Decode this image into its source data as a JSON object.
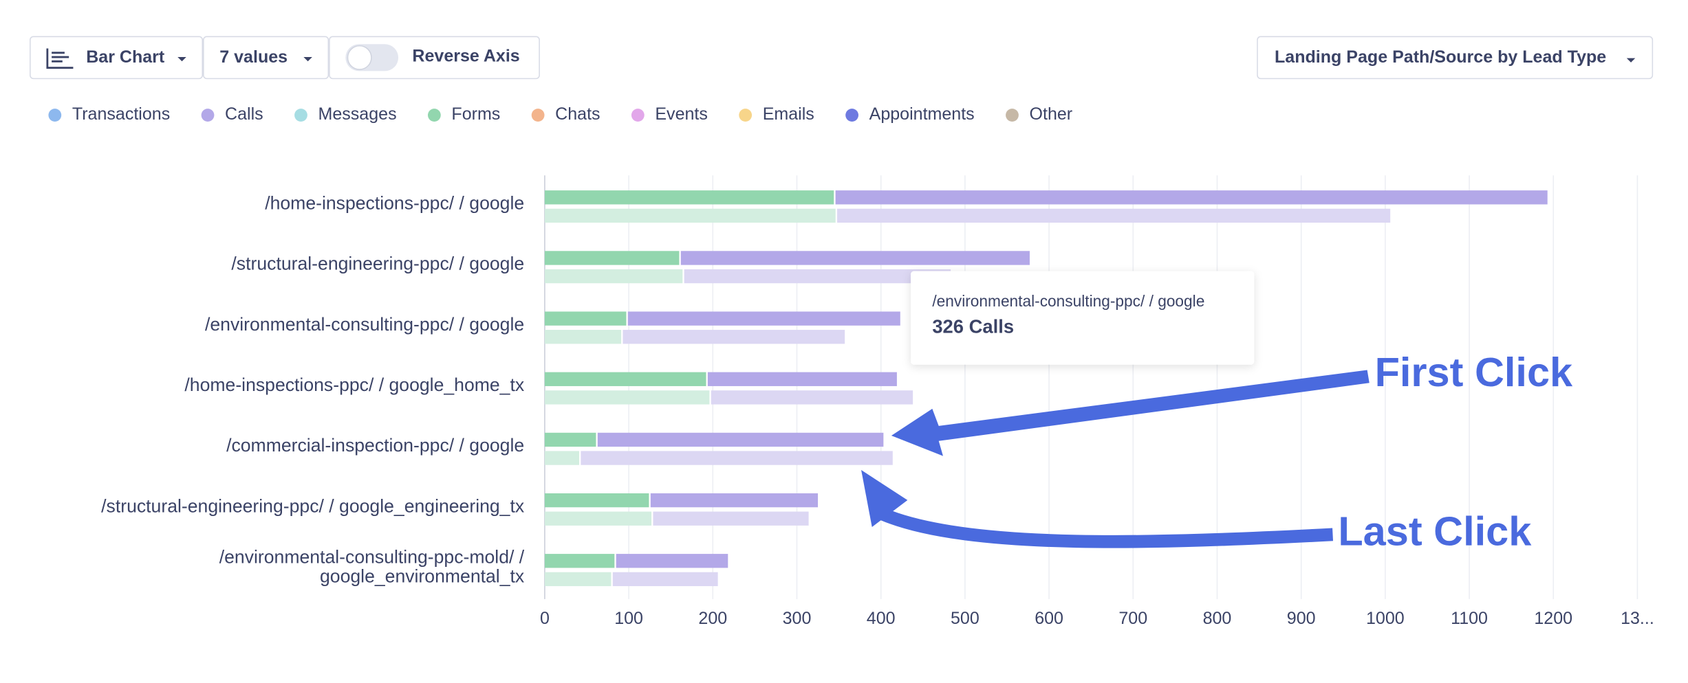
{
  "toolbar": {
    "chart_type": "Bar Chart",
    "values_count": "7 values",
    "toggle": "Reverse Axis",
    "grouping": "Landing Page Path/Source by Lead Type"
  },
  "legend": [
    {
      "name": "Transactions",
      "color": "#8db8ee"
    },
    {
      "name": "Calls",
      "color": "#b3a8e8"
    },
    {
      "name": "Messages",
      "color": "#a6dde3"
    },
    {
      "name": "Forms",
      "color": "#92d6ae"
    },
    {
      "name": "Chats",
      "color": "#f3b48c"
    },
    {
      "name": "Events",
      "color": "#e2a7ea"
    },
    {
      "name": "Emails",
      "color": "#f7d58a"
    },
    {
      "name": "Appointments",
      "color": "#6e7ae0"
    },
    {
      "name": "Other",
      "color": "#c6b8a6"
    }
  ],
  "chart_data": {
    "type": "bar",
    "orientation": "horizontal",
    "categories": [
      [
        "/home-inspections-ppc/ / google"
      ],
      [
        "/structural-engineering-ppc/ / google"
      ],
      [
        "/environmental-consulting-ppc/ / google"
      ],
      [
        "/home-inspections-ppc/ / google_home_tx"
      ],
      [
        "/commercial-inspection-ppc/ / google"
      ],
      [
        "/structural-engineering-ppc/ / google_engineering_tx"
      ],
      [
        "/environmental-consulting-ppc-mold/ /",
        "google_environmental_tx"
      ]
    ],
    "groups": [
      {
        "name": "First Click",
        "series": [
          {
            "name": "Forms",
            "color": "#92d6ae",
            "values": [
              344,
              160,
              97,
              192,
              61,
              124,
              83
            ]
          },
          {
            "name": "Calls",
            "color": "#b3a8e8",
            "values": [
              849,
              417,
              326,
              227,
              342,
              201,
              135
            ]
          }
        ]
      },
      {
        "name": "Last Click",
        "series": [
          {
            "name": "Forms",
            "color": "#d3eee0",
            "values": [
              346,
              164,
              91,
              196,
              41,
              127,
              79
            ]
          },
          {
            "name": "Calls",
            "color": "#dcd7f3",
            "values": [
              660,
              319,
              266,
              242,
              373,
              187,
              127
            ]
          }
        ]
      }
    ],
    "xlim": [
      0,
      1300
    ],
    "xticks": [
      0,
      100,
      200,
      300,
      400,
      500,
      600,
      700,
      800,
      900,
      1000,
      1100,
      1200,
      {
        "value": 1300,
        "label": "13..."
      }
    ],
    "grid": true,
    "tooltip": {
      "title": "/environmental-consulting-ppc/ / google",
      "text": "326 Calls"
    }
  }
}
